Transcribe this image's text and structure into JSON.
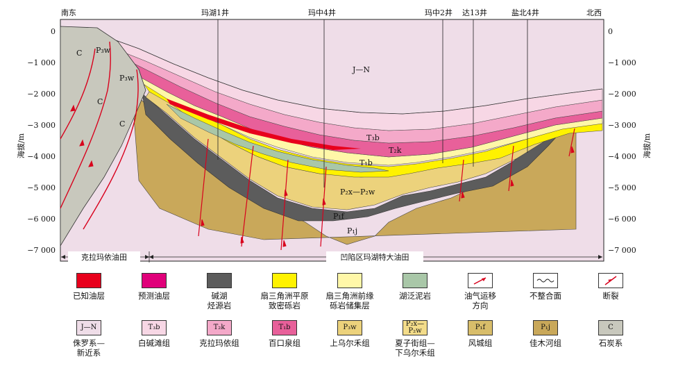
{
  "header": {
    "left_dir": "南东",
    "right_dir": "北西",
    "wells": [
      "玛湖1井",
      "玛中4井",
      "玛中2井",
      "达13井",
      "盐北4井"
    ]
  },
  "axis": {
    "label": "海拔/m",
    "ticks": [
      "0",
      "−1 000",
      "−2 000",
      "−3 000",
      "−4 000",
      "−5 000",
      "−6 000",
      "−7 000"
    ]
  },
  "formation_labels": {
    "jn": "J—N",
    "t3b": "T₃b",
    "t2k": "T₂k",
    "t1b": "T₁b",
    "p2x_p2w": "P₂x—P₂w",
    "p1f": "P₁f",
    "p1j": "P₁j",
    "p3w": "P₃w",
    "c": "C"
  },
  "fields": {
    "left": "克拉玛依油田",
    "right": "凹陷区玛湖特大油田"
  },
  "legend": [
    {
      "name": "known-oil",
      "label": "已知油层",
      "color": "#e8001c",
      "code": ""
    },
    {
      "name": "predicted-oil",
      "label": "预测油层",
      "color": "#e0007a",
      "code": ""
    },
    {
      "name": "source-rock",
      "label": "碱湖\n烃源岩",
      "color": "#5c5c5c",
      "code": ""
    },
    {
      "name": "fan-plain",
      "label": "扇三角洲平原\n致密砾岩",
      "color": "#fff200",
      "code": ""
    },
    {
      "name": "fan-front",
      "label": "扇三角洲前缘\n砾岩储集层",
      "color": "#fff7a8",
      "code": ""
    },
    {
      "name": "lake-mud",
      "label": "湖泛泥岩",
      "color": "#a9c7a8",
      "code": ""
    },
    {
      "name": "migration",
      "label": "油气运移\n方向",
      "color": "#ffffff",
      "code": ""
    },
    {
      "name": "unconformity",
      "label": "不整合面",
      "color": "#ffffff",
      "code": ""
    },
    {
      "name": "fault",
      "label": "断裂",
      "color": "#ffffff",
      "code": ""
    },
    {
      "name": "jurassic-neogene",
      "label": "侏罗系—\n新近系",
      "color": "#efdde8",
      "code": "J—N"
    },
    {
      "name": "baijiantan",
      "label": "白碱滩组",
      "color": "#f7d7e5",
      "code": "T₃b"
    },
    {
      "name": "karamay",
      "label": "克拉玛依组",
      "color": "#f4a9c9",
      "code": "T₂k"
    },
    {
      "name": "baikouquan",
      "label": "百口泉组",
      "color": "#e8609a",
      "code": "T₁b"
    },
    {
      "name": "upper-wuerhe",
      "label": "上乌尔禾组",
      "color": "#ecd27c",
      "code": "P₃w"
    },
    {
      "name": "xiazijie",
      "label": "夏子街组—\n下乌尔禾组",
      "color": "#f3dc8a",
      "code": "P₂x—\nP₂w"
    },
    {
      "name": "fengcheng",
      "label": "风城组",
      "color": "#d8bd6a",
      "code": "P₁f"
    },
    {
      "name": "jiamuhe",
      "label": "佳木河组",
      "color": "#c9a85a",
      "code": "P₁j"
    },
    {
      "name": "carboniferous",
      "label": "石炭系",
      "color": "#c8c8bd",
      "code": "C"
    }
  ]
}
